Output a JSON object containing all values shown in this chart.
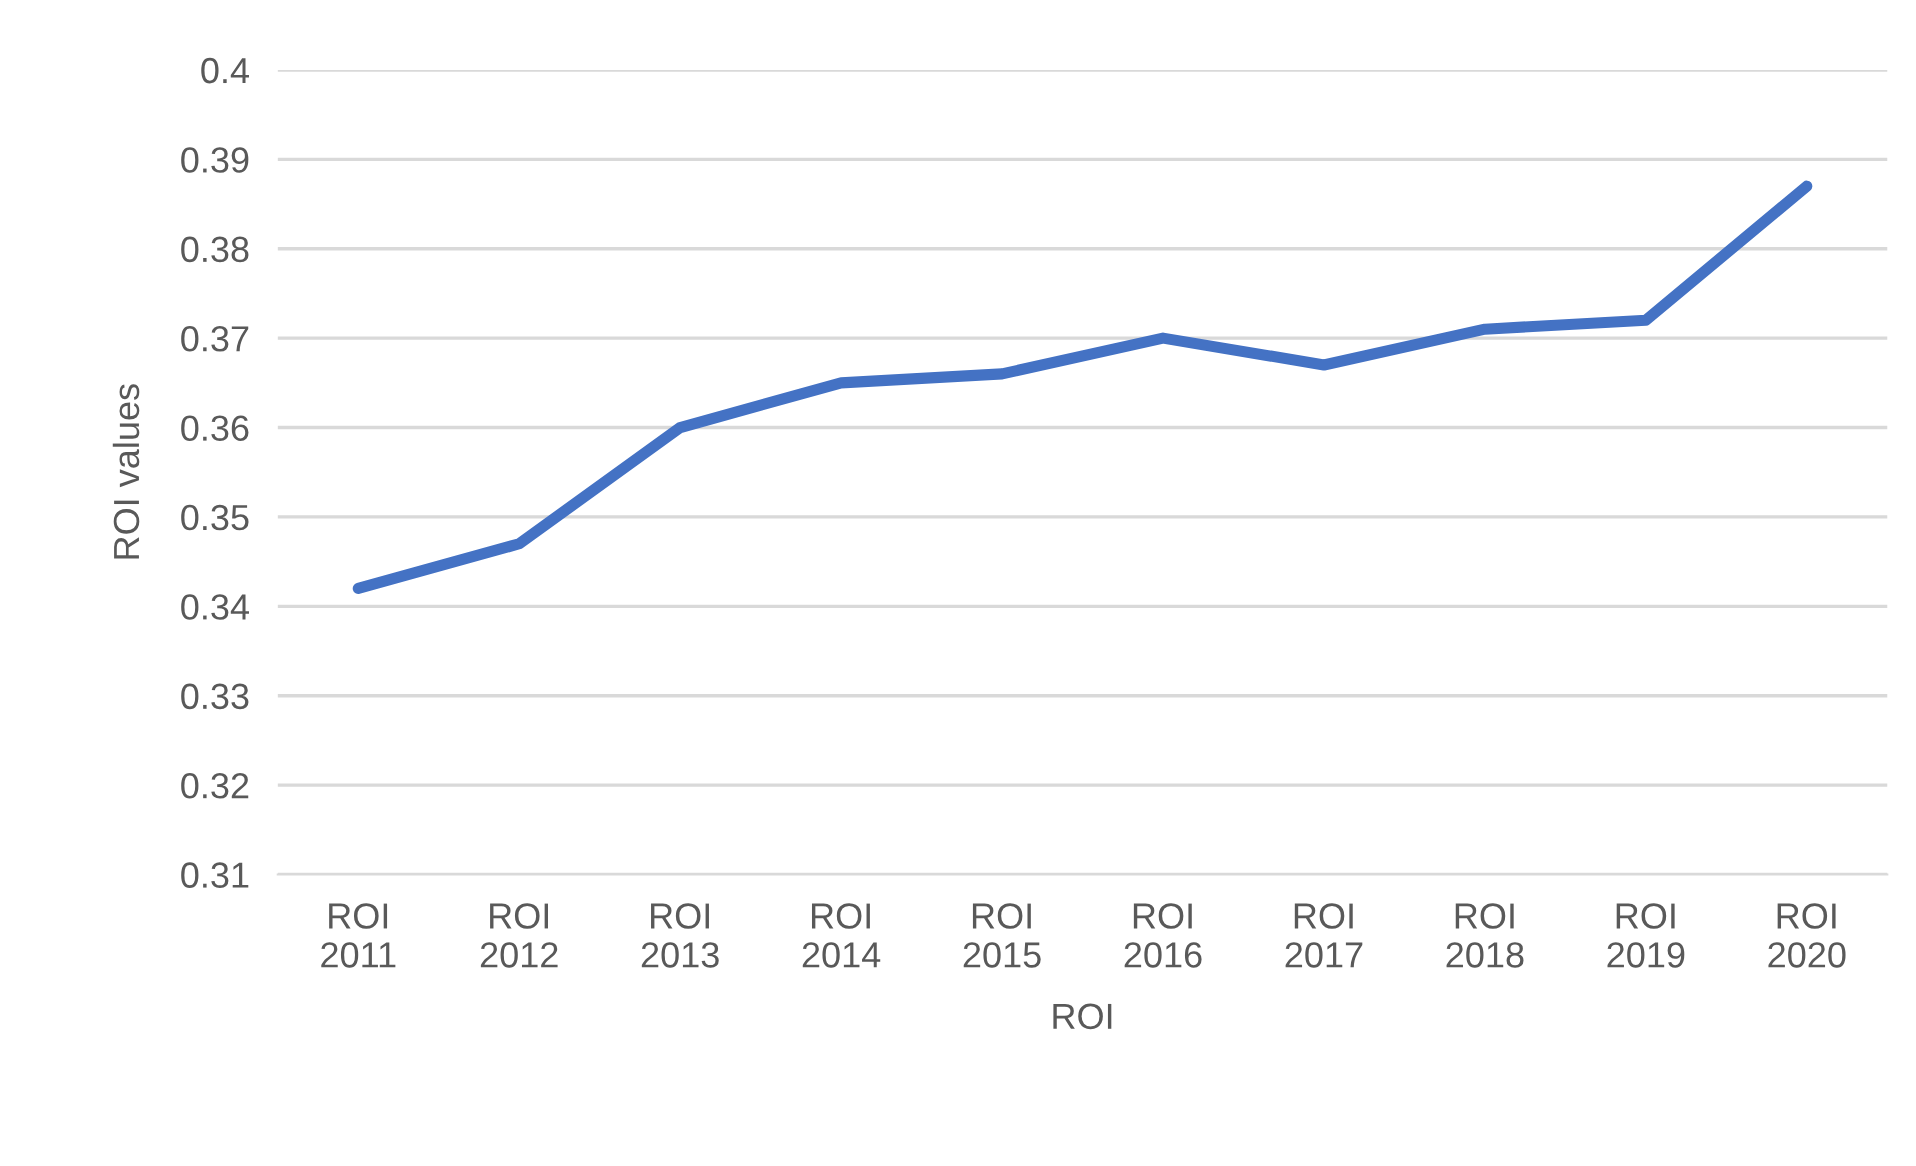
{
  "chart_data": {
    "type": "line",
    "xlabel": "ROI",
    "ylabel": "ROI values",
    "categories": [
      "ROI\n2011",
      "ROI\n2012",
      "ROI\n2013",
      "ROI\n2014",
      "ROI\n2015",
      "ROI\n2016",
      "ROI\n2017",
      "ROI\n2018",
      "ROI\n2019",
      "ROI\n2020"
    ],
    "series": [
      {
        "color": "#4472c4",
        "values": [
          0.342,
          0.347,
          0.36,
          0.365,
          0.366,
          0.37,
          0.367,
          0.371,
          0.372,
          0.387
        ]
      }
    ],
    "ylim": [
      0.31,
      0.4
    ],
    "yticks": [
      0.31,
      0.32,
      0.33,
      0.34,
      0.35,
      0.36,
      0.37,
      0.38,
      0.39,
      0.4
    ],
    "grid": "y",
    "line_style": "solid",
    "marker": "none"
  }
}
